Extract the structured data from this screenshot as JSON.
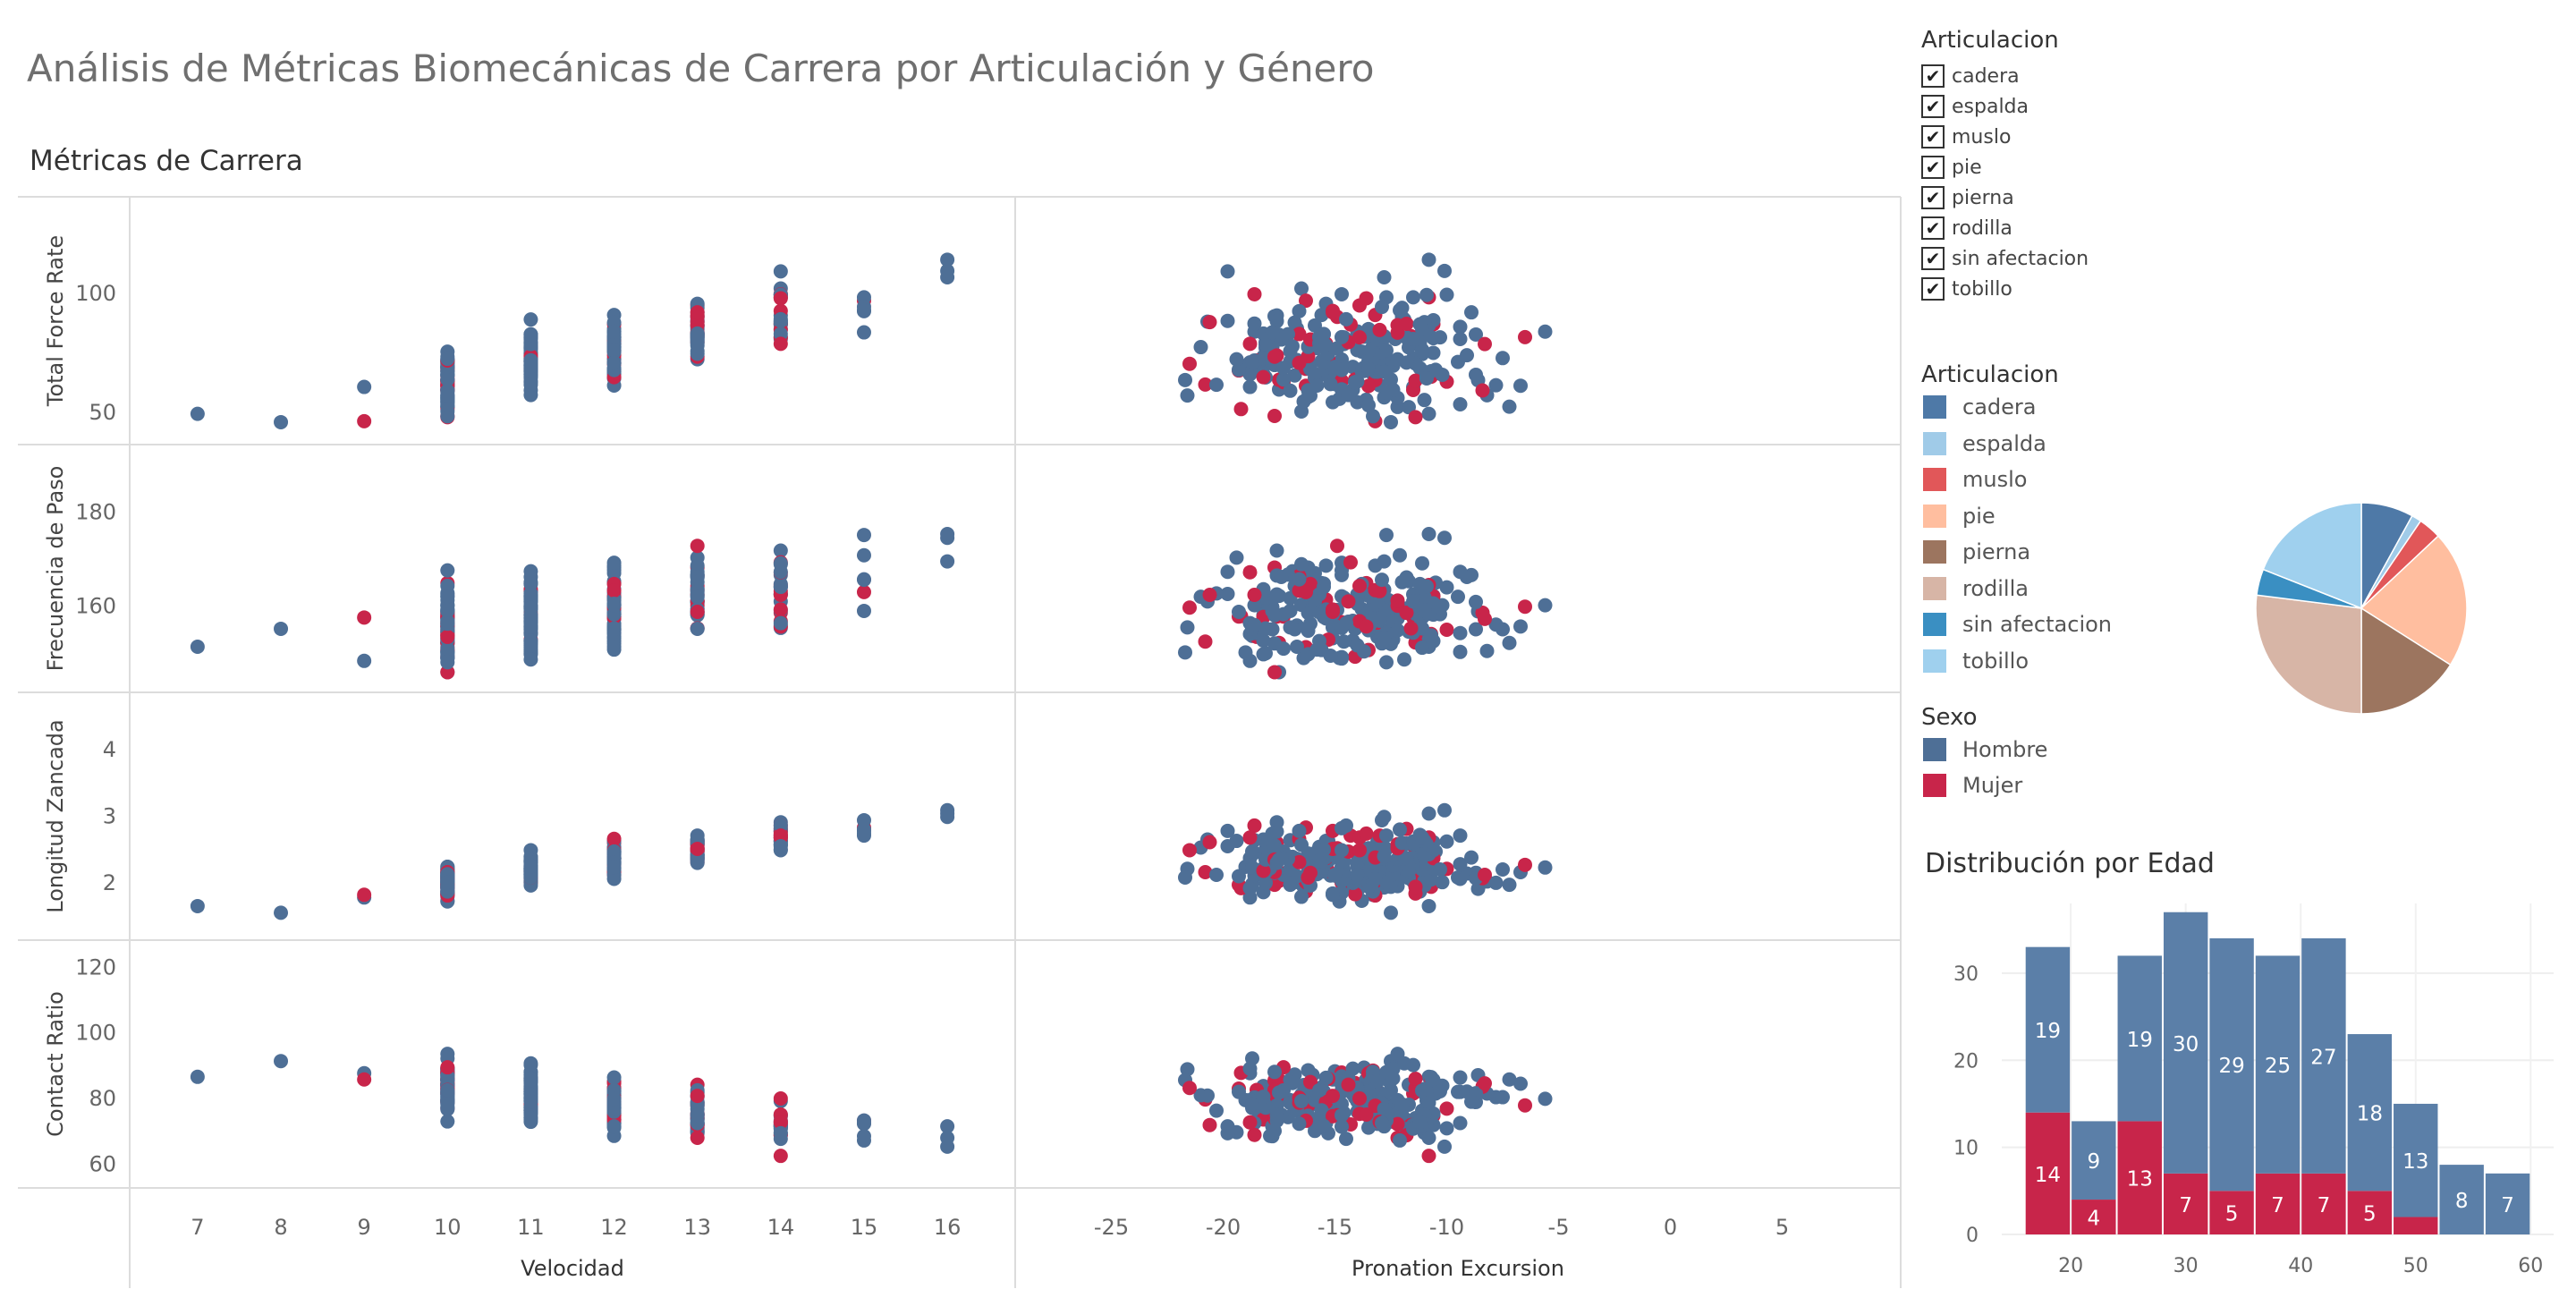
{
  "title": "Análisis de Métricas Biomecánicas de Carrera por Articulación y Género",
  "section_title": "Métricas de Carrera",
  "filter": {
    "title": "Articulacion",
    "check_glyph": "✔",
    "items": [
      {
        "label": "cadera",
        "checked": true
      },
      {
        "label": "espalda",
        "checked": true
      },
      {
        "label": "muslo",
        "checked": true
      },
      {
        "label": "pie",
        "checked": true
      },
      {
        "label": "pierna",
        "checked": true
      },
      {
        "label": "rodilla",
        "checked": true
      },
      {
        "label": "sin afectacion",
        "checked": true
      },
      {
        "label": "tobillo",
        "checked": true
      }
    ]
  },
  "color_legend": {
    "title": "Articulacion",
    "items": [
      {
        "label": "cadera",
        "color": "#4e79a7"
      },
      {
        "label": "espalda",
        "color": "#a0cbe8"
      },
      {
        "label": "muslo",
        "color": "#e15759"
      },
      {
        "label": "pie",
        "color": "#ffbe9f"
      },
      {
        "label": "pierna",
        "color": "#9c755f"
      },
      {
        "label": "rodilla",
        "color": "#d7b5a6"
      },
      {
        "label": "sin afectacion",
        "color": "#3a8fc2"
      },
      {
        "label": "tobillo",
        "color": "#9fd0ee"
      }
    ]
  },
  "sex_legend": {
    "title": "Sexo",
    "items": [
      {
        "label": "Hombre",
        "color": "#4e6f96"
      },
      {
        "label": "Mujer",
        "color": "#c8254a"
      }
    ]
  },
  "hist_title": "Distribución por Edad",
  "chart_data": [
    {
      "type": "scatter",
      "name": "scatter-matrix",
      "x_fields": [
        {
          "label": "Velocidad",
          "ticks": [
            7,
            8,
            9,
            10,
            11,
            12,
            13,
            14,
            15,
            16
          ],
          "range": [
            6.4,
            16.6
          ]
        },
        {
          "label": "Pronation Excursion",
          "ticks": [
            -25,
            -20,
            -15,
            -10,
            -5,
            0,
            5
          ],
          "range": [
            -28.5,
            9.5
          ]
        }
      ],
      "y_fields": [
        {
          "label": "Total Force Rate",
          "ticks": [
            50,
            100
          ],
          "range": [
            41,
            136
          ]
        },
        {
          "label": "Frecuencia de Paso",
          "ticks": [
            160,
            180
          ],
          "range": [
            144,
            192
          ]
        },
        {
          "label": "Longitud Zancada",
          "ticks": [
            2,
            3,
            4
          ],
          "range": [
            1.3,
            4.7
          ]
        },
        {
          "label": "Contact Ratio",
          "ticks": [
            60,
            80,
            100,
            120
          ],
          "range": [
            56,
            125
          ]
        }
      ],
      "colors": {
        "Hombre": "#4e6f96",
        "Mujer": "#c8254a"
      },
      "records": []
    },
    {
      "type": "pie",
      "name": "articulacion-share",
      "slices": [
        {
          "label": "cadera",
          "value": 8,
          "color": "#4e79a7"
        },
        {
          "label": "espalda",
          "value": 1.5,
          "color": "#a0cbe8"
        },
        {
          "label": "muslo",
          "value": 3.5,
          "color": "#e15759"
        },
        {
          "label": "pie",
          "value": 21,
          "color": "#ffbe9f"
        },
        {
          "label": "pierna",
          "value": 16,
          "color": "#9c755f"
        },
        {
          "label": "rodilla",
          "value": 27,
          "color": "#d7b5a6"
        },
        {
          "label": "sin afectacion",
          "value": 4,
          "color": "#3a8fc2"
        },
        {
          "label": "tobillo",
          "value": 19,
          "color": "#9fd0ee"
        }
      ]
    },
    {
      "type": "bar",
      "name": "age-distribution",
      "stacked": true,
      "bin_width": 4,
      "bin_starts": [
        16,
        20,
        24,
        28,
        32,
        36,
        40,
        44,
        48,
        52,
        56
      ],
      "x_ticks": [
        20,
        30,
        40,
        50,
        60
      ],
      "x_range": [
        14,
        62
      ],
      "y_ticks": [
        0,
        10,
        20,
        30
      ],
      "y_range": [
        0,
        38
      ],
      "series": [
        {
          "name": "Mujer",
          "color": "#c8254a",
          "values": [
            14,
            4,
            13,
            7,
            5,
            7,
            7,
            5,
            2,
            0,
            0
          ],
          "labels": [
            "14",
            "4",
            "13",
            "7",
            "5",
            "7",
            "7",
            "5",
            "",
            "",
            ""
          ]
        },
        {
          "name": "Hombre",
          "color": "#5b7fa8",
          "values": [
            19,
            9,
            19,
            30,
            29,
            25,
            27,
            18,
            13,
            8,
            7
          ],
          "labels": [
            "19",
            "9",
            "19",
            "30",
            "29",
            "25",
            "27",
            "18",
            "13",
            "8",
            "7"
          ]
        }
      ]
    }
  ]
}
